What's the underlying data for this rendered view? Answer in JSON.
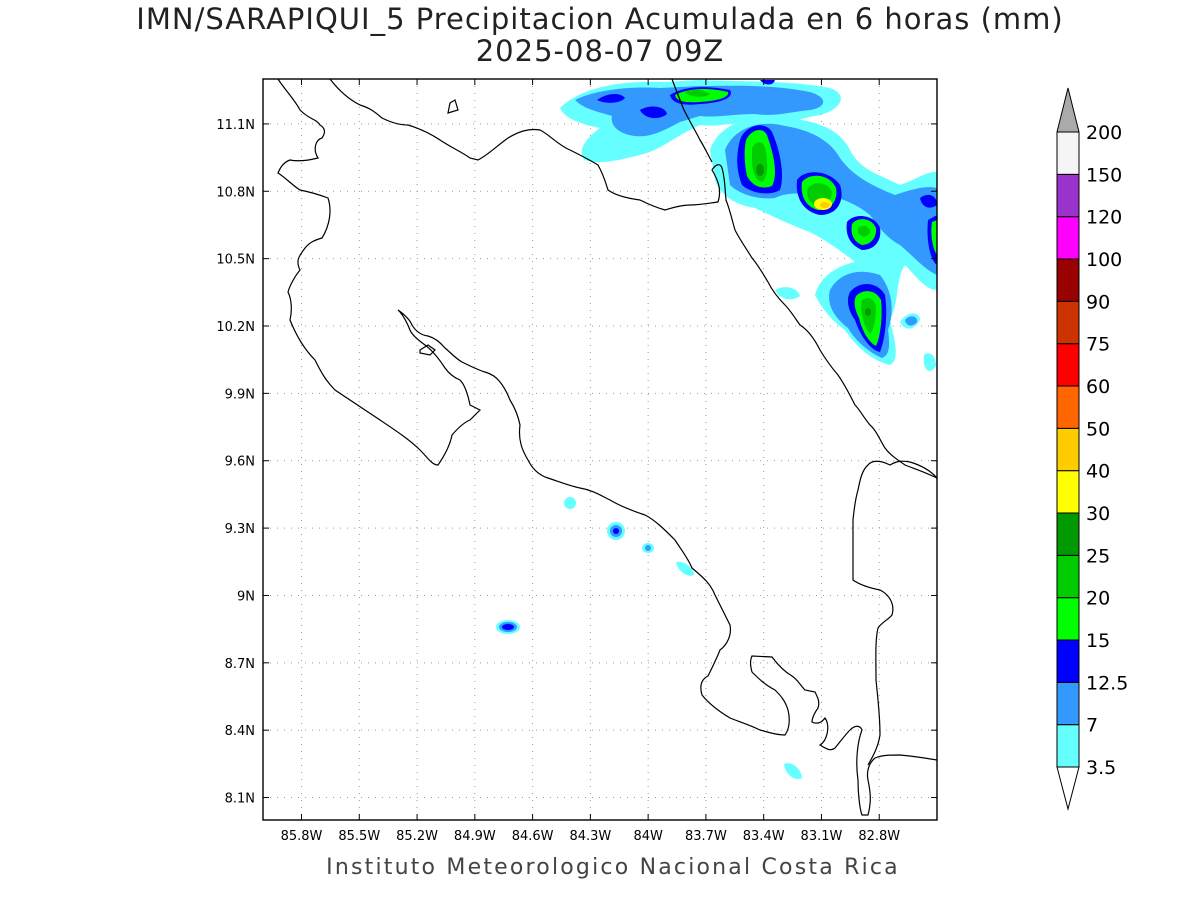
{
  "title": {
    "line1": "IMN/SARAPIQUI_5 Precipitacion Acumulada en 6 horas (mm)",
    "line2": "2025-08-07 09Z"
  },
  "credit": "Instituto Meteorologico Nacional Costa Rica",
  "map": {
    "lon_range": [
      -86.0,
      -82.5
    ],
    "lat_range": [
      8.0,
      11.3
    ],
    "x_ticks": [
      {
        "lon": -85.8,
        "label": "85.8W"
      },
      {
        "lon": -85.5,
        "label": "85.5W"
      },
      {
        "lon": -85.2,
        "label": "85.2W"
      },
      {
        "lon": -84.9,
        "label": "84.9W"
      },
      {
        "lon": -84.6,
        "label": "84.6W"
      },
      {
        "lon": -84.3,
        "label": "84.3W"
      },
      {
        "lon": -84.0,
        "label": "84W"
      },
      {
        "lon": -83.7,
        "label": "83.7W"
      },
      {
        "lon": -83.4,
        "label": "83.4W"
      },
      {
        "lon": -83.1,
        "label": "83.1W"
      },
      {
        "lon": -82.8,
        "label": "82.8W"
      }
    ],
    "y_ticks": [
      {
        "lat": 11.1,
        "label": "11.1N"
      },
      {
        "lat": 10.8,
        "label": "10.8N"
      },
      {
        "lat": 10.5,
        "label": "10.5N"
      },
      {
        "lat": 10.2,
        "label": "10.2N"
      },
      {
        "lat": 9.9,
        "label": "9.9N"
      },
      {
        "lat": 9.6,
        "label": "9.6N"
      },
      {
        "lat": 9.3,
        "label": "9.3N"
      },
      {
        "lat": 9.0,
        "label": "9N"
      },
      {
        "lat": 8.7,
        "label": "8.7N"
      },
      {
        "lat": 8.4,
        "label": "8.4N"
      },
      {
        "lat": 8.1,
        "label": "8.1N"
      }
    ],
    "grid": true
  },
  "colorbar": {
    "levels": [
      {
        "label": "3.5",
        "color": "#66ffff"
      },
      {
        "label": "7",
        "color": "#3399ff"
      },
      {
        "label": "12.5",
        "color": "#0000ff"
      },
      {
        "label": "15",
        "color": "#00ff00"
      },
      {
        "label": "20",
        "color": "#00cc00"
      },
      {
        "label": "25",
        "color": "#009900"
      },
      {
        "label": "30",
        "color": "#ffff00"
      },
      {
        "label": "40",
        "color": "#ffcc00"
      },
      {
        "label": "50",
        "color": "#ff6600"
      },
      {
        "label": "60",
        "color": "#ff0000"
      },
      {
        "label": "75",
        "color": "#cc3300"
      },
      {
        "label": "90",
        "color": "#990000"
      },
      {
        "label": "100",
        "color": "#ff00ff"
      },
      {
        "label": "120",
        "color": "#9933cc"
      },
      {
        "label": "150",
        "color": "#f5f5f5"
      },
      {
        "label": "200",
        "color": "#aaaaaa"
      }
    ]
  }
}
